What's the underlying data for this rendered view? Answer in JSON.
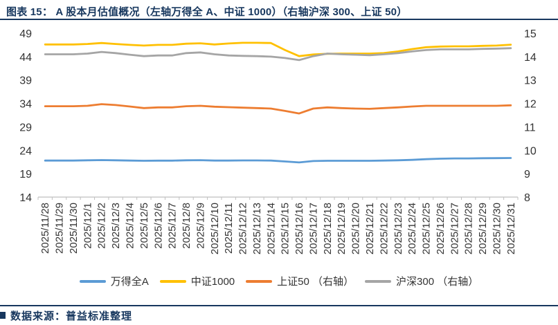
{
  "header": {
    "title": "图表 15： A 股本月估值概况（左轴万得全 A、中证 1000）（右轴沪深 300、上证 50）"
  },
  "footer": {
    "source": "数据来源：普益标准整理"
  },
  "colors": {
    "title_navy": "#17375E",
    "axis_text": "#333333",
    "axis_line": "#BFBFBF",
    "series_blue": "#5B9BD5",
    "series_yellow": "#FFC000",
    "series_orange": "#ED7D31",
    "series_gray": "#A5A5A5"
  },
  "chart_data": {
    "type": "line",
    "grid": false,
    "legend_position": "bottom",
    "x": [
      "2025/11/28",
      "2025/11/29",
      "2025/11/30",
      "2025/12/1",
      "2025/12/2",
      "2025/12/3",
      "2025/12/4",
      "2025/12/5",
      "2025/12/6",
      "2025/12/7",
      "2025/12/8",
      "2025/12/9",
      "2025/12/10",
      "2025/12/11",
      "2025/12/12",
      "2025/12/13",
      "2025/12/14",
      "2025/12/15",
      "2025/12/16",
      "2025/12/17",
      "2025/12/18",
      "2025/12/19",
      "2025/12/20",
      "2025/12/21",
      "2025/12/22",
      "2025/12/23",
      "2025/12/24",
      "2025/12/25",
      "2025/12/26",
      "2025/12/27",
      "2025/12/28",
      "2025/12/29",
      "2025/12/30",
      "2025/12/31"
    ],
    "left_axis": {
      "min": 14,
      "max": 49,
      "ticks": [
        49,
        44,
        39,
        34,
        29,
        24,
        19,
        14
      ]
    },
    "right_axis": {
      "min": 8,
      "max": 15,
      "ticks": [
        15,
        14,
        13,
        12,
        11,
        10,
        9,
        8
      ]
    },
    "series": [
      {
        "name": "万得全A",
        "axis": "left",
        "color": "#5B9BD5",
        "values": [
          21.8,
          21.8,
          21.8,
          21.85,
          21.9,
          21.85,
          21.8,
          21.75,
          21.78,
          21.78,
          21.85,
          21.88,
          21.8,
          21.8,
          21.82,
          21.82,
          21.8,
          21.6,
          21.4,
          21.7,
          21.75,
          21.75,
          21.75,
          21.75,
          21.8,
          21.85,
          21.95,
          22.1,
          22.2,
          22.25,
          22.25,
          22.3,
          22.32,
          22.35
        ]
      },
      {
        "name": "中证1000",
        "axis": "left",
        "color": "#FFC000",
        "values": [
          46.6,
          46.6,
          46.6,
          46.7,
          46.9,
          46.7,
          46.5,
          46.35,
          46.5,
          46.5,
          46.75,
          46.85,
          46.6,
          46.8,
          46.95,
          46.95,
          46.9,
          45.4,
          44.1,
          44.45,
          44.6,
          44.65,
          44.65,
          44.65,
          44.75,
          45.1,
          45.6,
          46.0,
          46.15,
          46.2,
          46.2,
          46.3,
          46.35,
          46.55
        ]
      },
      {
        "name": "上证50 （右轴）",
        "axis": "right",
        "color": "#ED7D31",
        "values": [
          11.88,
          11.88,
          11.88,
          11.9,
          11.97,
          11.93,
          11.87,
          11.8,
          11.83,
          11.83,
          11.88,
          11.9,
          11.86,
          11.84,
          11.82,
          11.8,
          11.78,
          11.68,
          11.57,
          11.78,
          11.83,
          11.8,
          11.78,
          11.77,
          11.8,
          11.83,
          11.87,
          11.9,
          11.9,
          11.9,
          11.9,
          11.9,
          11.9,
          11.92
        ]
      },
      {
        "name": "沪深300 （右轴）",
        "axis": "right",
        "color": "#A5A5A5",
        "values": [
          14.1,
          14.1,
          14.1,
          14.13,
          14.2,
          14.15,
          14.08,
          14.02,
          14.05,
          14.05,
          14.15,
          14.18,
          14.1,
          14.05,
          14.03,
          14.02,
          14.0,
          13.94,
          13.85,
          14.02,
          14.13,
          14.1,
          14.08,
          14.06,
          14.1,
          14.15,
          14.22,
          14.28,
          14.31,
          14.31,
          14.31,
          14.33,
          14.34,
          14.36
        ]
      }
    ]
  }
}
